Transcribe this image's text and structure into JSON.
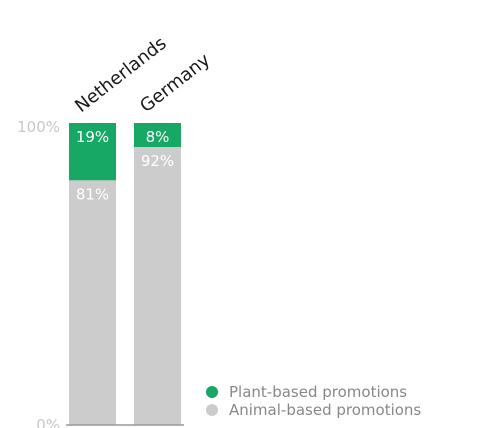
{
  "chart_data": {
    "type": "bar",
    "stacked": true,
    "percent": true,
    "categories": [
      "Netherlands",
      "Germany"
    ],
    "series": [
      {
        "name": "Plant-based promotions",
        "values": [
          19,
          8
        ],
        "labels": [
          "19%",
          "8%"
        ],
        "color": "#16a864"
      },
      {
        "name": "Animal-based promotions",
        "values": [
          81,
          92
        ],
        "labels": [
          "81%",
          "92%"
        ],
        "color": "#cccccc"
      }
    ],
    "y_ticks": [
      "100%",
      "0%"
    ],
    "ylim": [
      0,
      100
    ],
    "xlabel": "",
    "ylabel": "",
    "title": "",
    "legend_position": "bottom-right",
    "grid": false
  }
}
